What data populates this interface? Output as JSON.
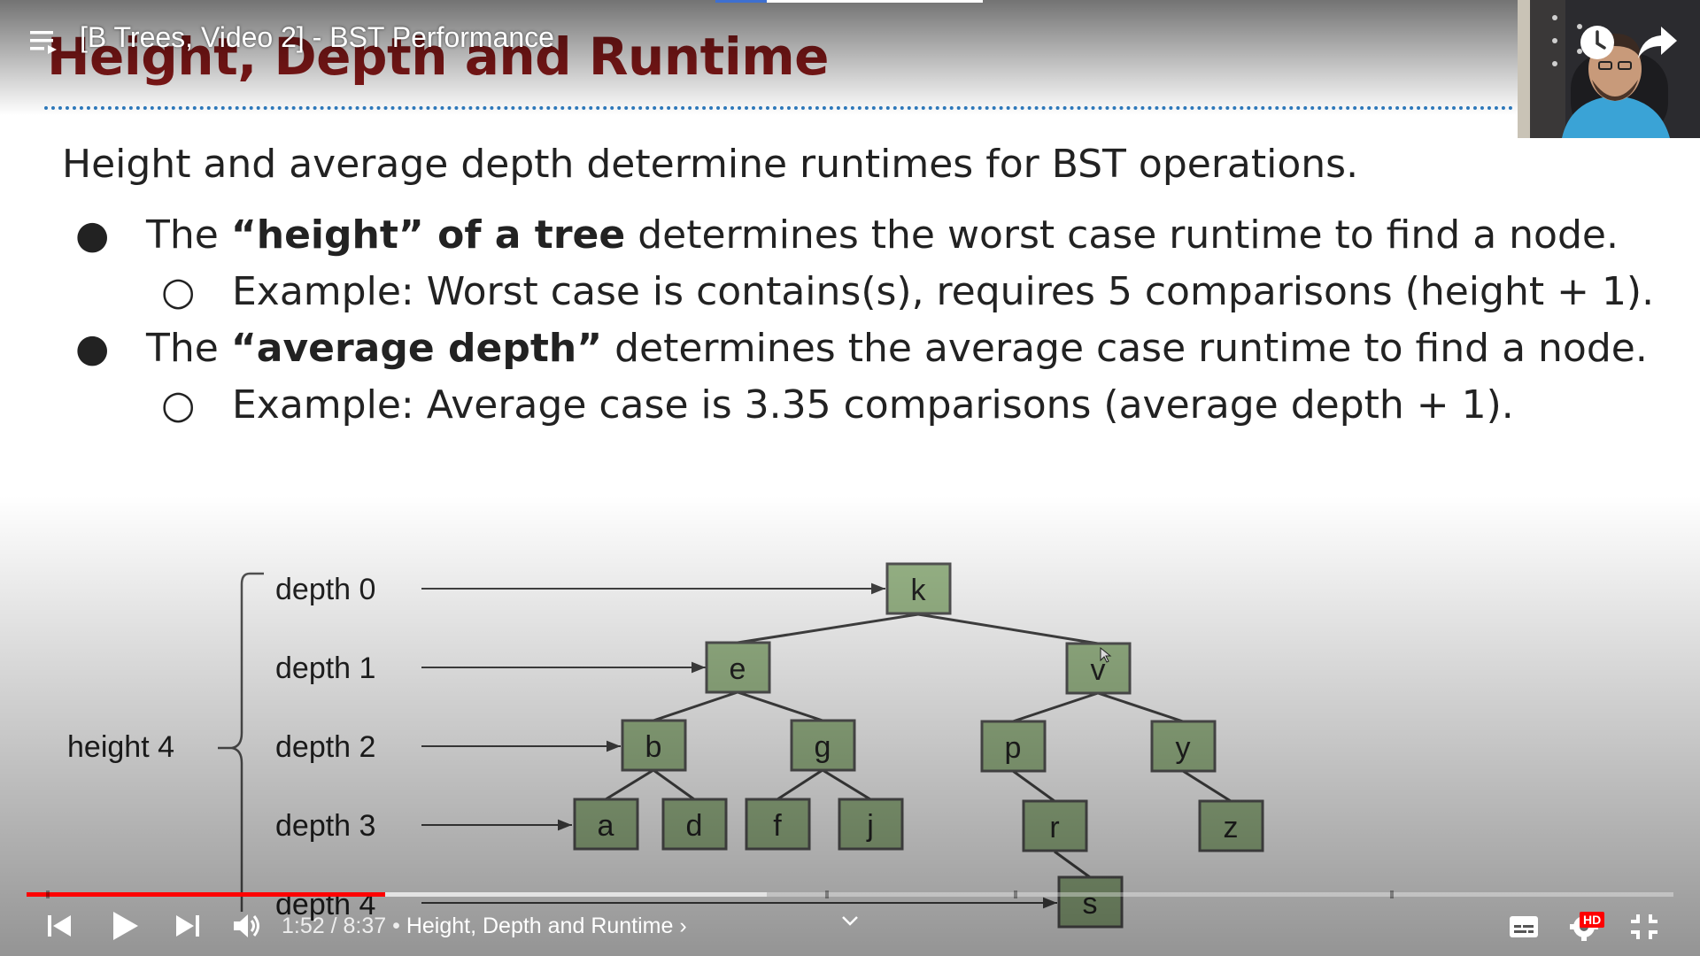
{
  "slide": {
    "title": "Height, Depth and Runtime",
    "intro": "Height and average depth determine runtimes for BST operations.",
    "bullets": [
      {
        "pre": "The ",
        "bold": "“height” of a tree",
        "post": " determines the worst case runtime to find a node.",
        "sub": "Example: Worst case is contains(s), requires 5 comparisons (height + 1)."
      },
      {
        "pre": "The ",
        "bold": "“average depth”",
        "post": " determines the average case runtime to find a node.",
        "sub": "Example: Average case is 3.35 comparisons (average depth + 1)."
      }
    ],
    "bullet_glyph": "●",
    "sub_glyph": "○",
    "diagram": {
      "height_label": "height 4",
      "depth_labels": [
        "depth 0",
        "depth 1",
        "depth 2",
        "depth 3",
        "depth 4"
      ],
      "nodes": [
        "k",
        "e",
        "v",
        "b",
        "g",
        "p",
        "y",
        "a",
        "d",
        "f",
        "j",
        "r",
        "z",
        "s"
      ],
      "node_fill": "#9cb98a",
      "node_border": "#555555"
    }
  },
  "player": {
    "video_title": "[B Trees, Video 2] - BST Performance",
    "current_time": "1:52",
    "duration": "8:37",
    "time_separator": " / ",
    "chapter_separator": " • ",
    "chapter": "Height, Depth and Runtime",
    "chapter_chevron": "›",
    "hd_badge": "HD",
    "progress": {
      "played_fraction": 0.217,
      "buffered_fraction": 0.45
    },
    "accent_color": "#ff0000",
    "icons": [
      "playlist-icon",
      "watch-later-icon",
      "share-icon",
      "previous-icon",
      "play-icon",
      "next-icon",
      "volume-icon",
      "expand-chevron-icon",
      "subtitles-icon",
      "settings-icon",
      "exit-fullscreen-icon"
    ]
  }
}
